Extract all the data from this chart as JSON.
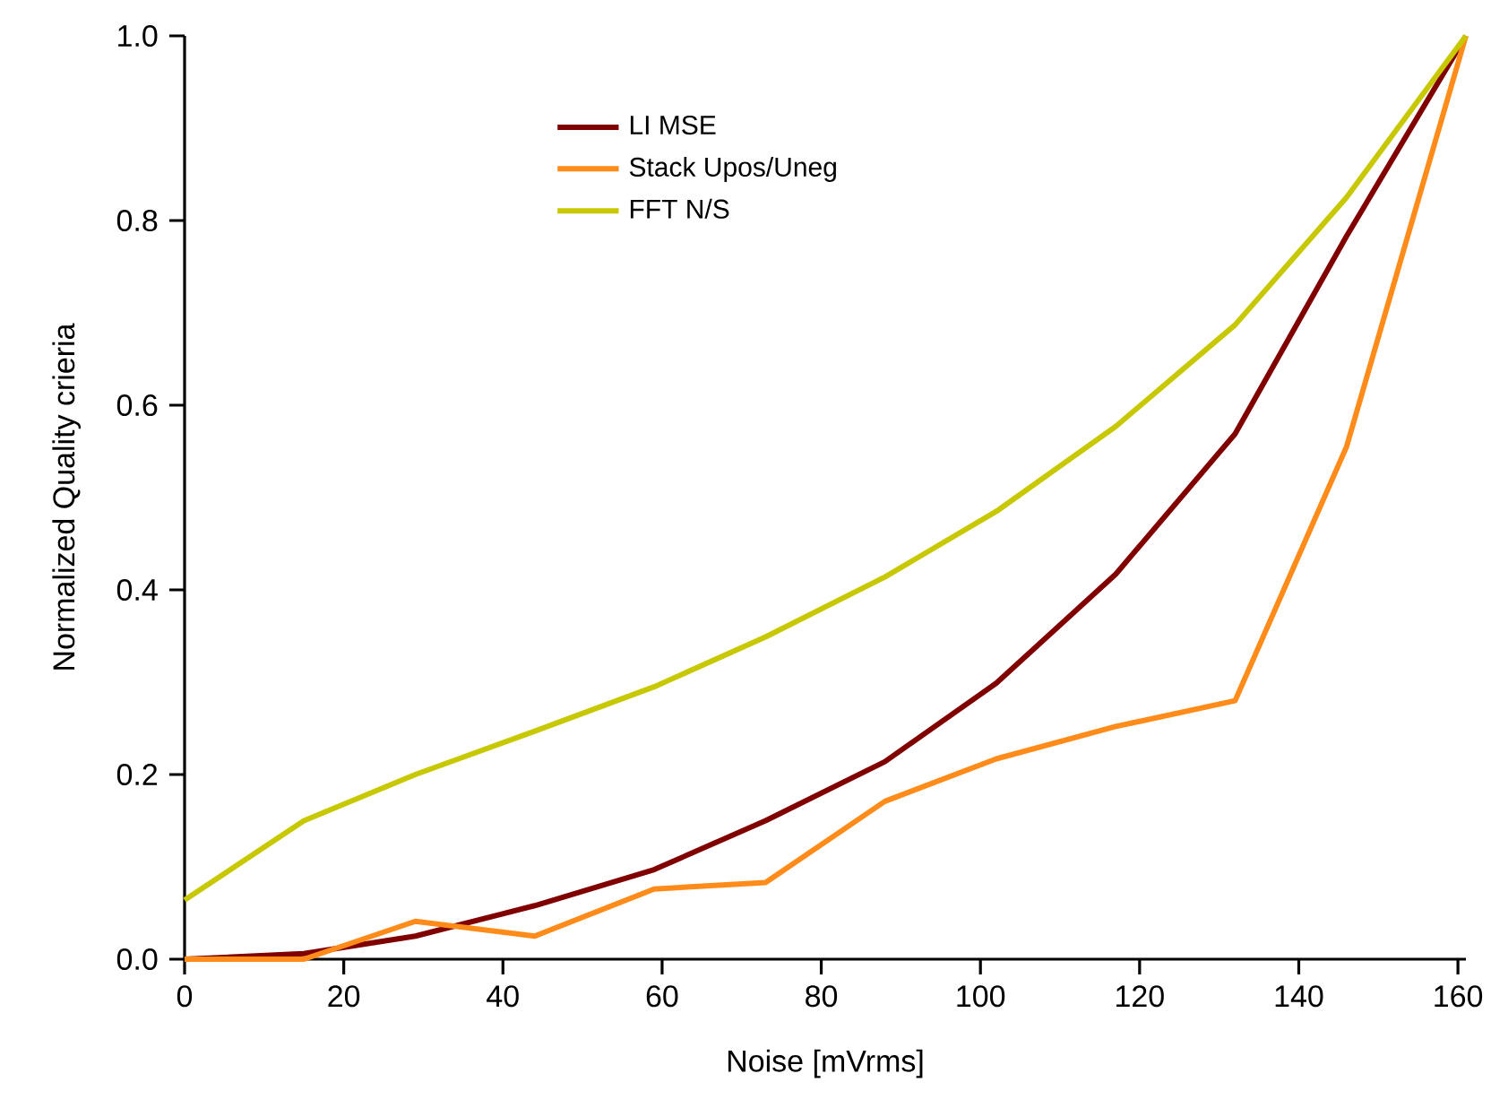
{
  "chart_data": {
    "type": "line",
    "xlabel": "Noise [mVrms]",
    "ylabel": "Normalized Quality crieria",
    "x": [
      0,
      15,
      29,
      44,
      59,
      73,
      88,
      102,
      117,
      132,
      146,
      161
    ],
    "xlim": [
      0,
      161
    ],
    "ylim": [
      0,
      1
    ],
    "xticks": [
      0,
      20,
      40,
      60,
      80,
      100,
      120,
      140,
      160
    ],
    "yticks": [
      {
        "value": 0,
        "label": "0.0"
      },
      {
        "value": 0.2,
        "label": "0.2"
      },
      {
        "value": 0.4,
        "label": "0.4"
      },
      {
        "value": 0.6,
        "label": "0.6"
      },
      {
        "value": 0.8,
        "label": "0.8"
      },
      {
        "value": 1,
        "label": "1.0"
      }
    ],
    "series": [
      {
        "name": "LI MSE",
        "color": "#800000",
        "values": [
          0,
          0.006,
          0.025,
          0.058,
          0.097,
          0.15,
          0.214,
          0.299,
          0.417,
          0.569,
          0.783,
          1.0
        ]
      },
      {
        "name": "Stack Upos/Uneg",
        "color": "#ff8c1a",
        "values": [
          0,
          0,
          0.041,
          0.025,
          0.076,
          0.083,
          0.171,
          0.217,
          0.252,
          0.28,
          0.555,
          1.0
        ]
      },
      {
        "name": "FFT N/S",
        "color": "#c8c800",
        "values": [
          0.064,
          0.15,
          0.2,
          0.247,
          0.295,
          0.349,
          0.414,
          0.485,
          0.577,
          0.687,
          0.825,
          1.0
        ]
      }
    ],
    "legend": "top left",
    "grid": false,
    "marker": "none",
    "line_style": "solid"
  }
}
